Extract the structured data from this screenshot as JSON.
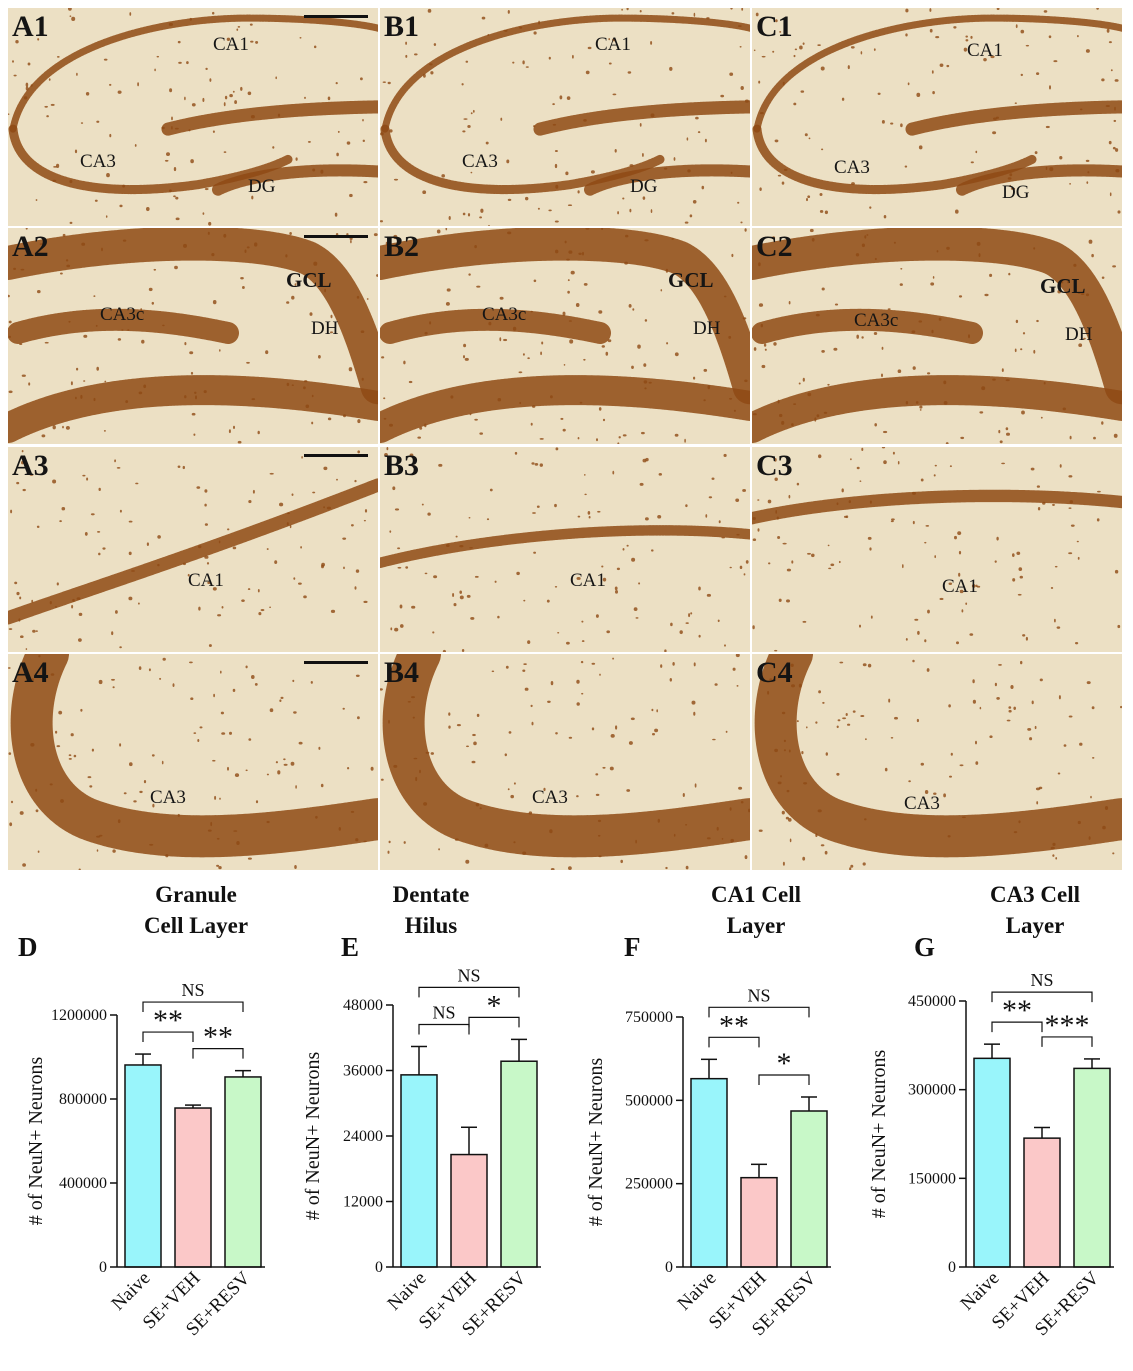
{
  "micrographs": {
    "rows": [
      {
        "row": 1,
        "panels": [
          {
            "tag": "A1",
            "labels": [
              "CA1",
              "CA3",
              "DG"
            ],
            "scale_bar": true
          },
          {
            "tag": "B1",
            "labels": [
              "CA1",
              "CA3",
              "DG"
            ],
            "scale_bar": false
          },
          {
            "tag": "C1",
            "labels": [
              "CA1",
              "CA3",
              "DG"
            ],
            "scale_bar": false
          }
        ]
      },
      {
        "row": 2,
        "panels": [
          {
            "tag": "A2",
            "labels": [
              "GCL",
              "CA3c",
              "DH"
            ],
            "scale_bar": true
          },
          {
            "tag": "B2",
            "labels": [
              "GCL",
              "CA3c",
              "DH"
            ],
            "scale_bar": false
          },
          {
            "tag": "C2",
            "labels": [
              "GCL",
              "CA3c",
              "DH"
            ],
            "scale_bar": false
          }
        ]
      },
      {
        "row": 3,
        "panels": [
          {
            "tag": "A3",
            "labels": [
              "CA1"
            ],
            "scale_bar": true
          },
          {
            "tag": "B3",
            "labels": [
              "CA1"
            ],
            "scale_bar": false
          },
          {
            "tag": "C3",
            "labels": [
              "CA1"
            ],
            "scale_bar": false
          }
        ]
      },
      {
        "row": 4,
        "panels": [
          {
            "tag": "A4",
            "labels": [
              "CA3"
            ],
            "scale_bar": true
          },
          {
            "tag": "B4",
            "labels": [
              "CA3"
            ],
            "scale_bar": false
          },
          {
            "tag": "C4",
            "labels": [
              "CA3"
            ],
            "scale_bar": false
          }
        ]
      }
    ],
    "stain_color": "#8f4a14",
    "background_color": "#ece0c4"
  },
  "colors": {
    "naive": "#99f5fb",
    "se_veh": "#fbc8c8",
    "se_resv": "#c8f8c8"
  },
  "chart_data": [
    {
      "type": "bar",
      "panel": "D",
      "title": "Granule Cell Layer",
      "title_lines": [
        "Granule",
        "Cell Layer"
      ],
      "ylabel": "# of NeuN+ Neurons",
      "categories": [
        "Naive",
        "SE+VEH",
        "SE+RESV"
      ],
      "values": [
        962000,
        757000,
        905000
      ],
      "errors": [
        52000,
        14000,
        30000
      ],
      "ylim": [
        0,
        1200000
      ],
      "yticks": [
        0,
        400000,
        800000,
        1200000
      ],
      "ytick_labels": [
        "0",
        "400000",
        "800000",
        "1200000"
      ],
      "significance": [
        {
          "from": 0,
          "to": 1,
          "label": "**",
          "level": 1
        },
        {
          "from": 1,
          "to": 2,
          "label": "**",
          "level": 1
        },
        {
          "from": 0,
          "to": 2,
          "label": "NS",
          "level": 2
        }
      ]
    },
    {
      "type": "bar",
      "panel": "E",
      "title": "Dentate Hilus",
      "title_lines": [
        "Dentate",
        "Hilus"
      ],
      "ylabel": "# of NeuN+ Neurons",
      "categories": [
        "Naive",
        "SE+VEH",
        "SE+RESV"
      ],
      "values": [
        35200,
        20600,
        37700
      ],
      "errors": [
        5200,
        5000,
        4000
      ],
      "ylim": [
        0,
        48000
      ],
      "yticks": [
        0,
        12000,
        24000,
        36000,
        48000
      ],
      "ytick_labels": [
        "0",
        "12000",
        "24000",
        "36000",
        "48000"
      ],
      "significance": [
        {
          "from": 0,
          "to": 1,
          "label": "NS",
          "level": 1
        },
        {
          "from": 1,
          "to": 2,
          "label": "*",
          "level": 1
        },
        {
          "from": 0,
          "to": 2,
          "label": "NS",
          "level": 2
        }
      ]
    },
    {
      "type": "bar",
      "panel": "F",
      "title": "CA1 Cell Layer",
      "title_lines": [
        "CA1 Cell",
        "Layer"
      ],
      "ylabel": "# of NeuN+ Neurons",
      "categories": [
        "Naive",
        "SE+VEH",
        "SE+RESV"
      ],
      "values": [
        565000,
        268000,
        468000
      ],
      "errors": [
        58000,
        40000,
        42000
      ],
      "ylim": [
        0,
        750000
      ],
      "yticks": [
        0,
        250000,
        500000,
        750000
      ],
      "ytick_labels": [
        "0",
        "250000",
        "500000",
        "750000"
      ],
      "significance": [
        {
          "from": 0,
          "to": 1,
          "label": "**",
          "level": 1
        },
        {
          "from": 1,
          "to": 2,
          "label": "*",
          "level": 1
        },
        {
          "from": 0,
          "to": 2,
          "label": "NS",
          "level": 2
        }
      ]
    },
    {
      "type": "bar",
      "panel": "G",
      "title": "CA3 Cell Layer",
      "title_lines": [
        "CA3 Cell",
        "Layer"
      ],
      "ylabel": "# of NeuN+ Neurons",
      "categories": [
        "Naive",
        "SE+VEH",
        "SE+RESV"
      ],
      "values": [
        353000,
        218000,
        336000
      ],
      "errors": [
        24000,
        18000,
        16000
      ],
      "ylim": [
        0,
        450000
      ],
      "yticks": [
        0,
        150000,
        300000,
        450000
      ],
      "ytick_labels": [
        "0",
        "150000",
        "300000",
        "450000"
      ],
      "significance": [
        {
          "from": 0,
          "to": 1,
          "label": "**",
          "level": 1
        },
        {
          "from": 1,
          "to": 2,
          "label": "***",
          "level": 1
        },
        {
          "from": 0,
          "to": 2,
          "label": "NS",
          "level": 2
        }
      ]
    }
  ]
}
